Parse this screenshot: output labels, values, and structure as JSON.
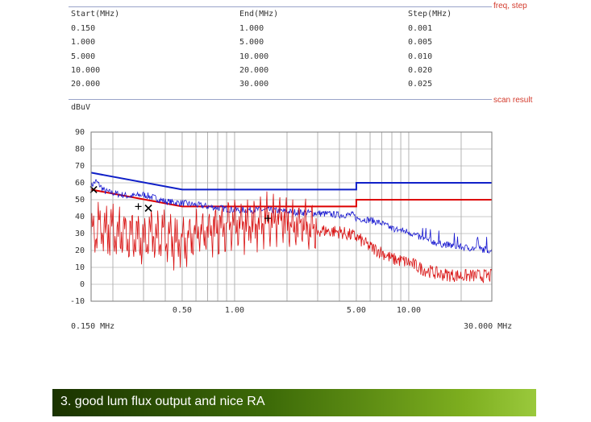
{
  "sections": {
    "freq_step_label": "freq, step",
    "scan_result_label": "scan result"
  },
  "table": {
    "headers": [
      "Start(MHz)",
      "End(MHz)",
      "Step(MHz)"
    ],
    "rows": [
      [
        "0.150",
        "1.000",
        "0.001"
      ],
      [
        "1.000",
        "5.000",
        "0.005"
      ],
      [
        "5.000",
        "10.000",
        "0.010"
      ],
      [
        "10.000",
        "20.000",
        "0.020"
      ],
      [
        "20.000",
        "30.000",
        "0.025"
      ]
    ]
  },
  "chart_data": {
    "type": "line",
    "title": "",
    "ylabel": "dBuV",
    "xlabel": "",
    "x_scale": "log",
    "xlim": [
      0.15,
      30
    ],
    "ylim": [
      -10,
      90
    ],
    "y_ticks": [
      -10,
      0,
      10,
      20,
      30,
      40,
      50,
      60,
      70,
      80,
      90
    ],
    "x_tick_labels": [
      {
        "value": 0.5,
        "label": "0.50"
      },
      {
        "value": 1.0,
        "label": "1.00"
      },
      {
        "value": 5.0,
        "label": "5.00"
      },
      {
        "value": 10.0,
        "label": "10.00"
      }
    ],
    "x_range_labels": {
      "start": "0.150 MHz",
      "end": "30.000 MHz"
    },
    "grid": true,
    "series": [
      {
        "kind": "limit",
        "color": "#1020c8",
        "x": [
          0.15,
          0.5,
          0.5,
          5.0,
          5.0,
          30.0
        ],
        "y": [
          66,
          56,
          56,
          56,
          60,
          60
        ]
      },
      {
        "kind": "limit",
        "color": "#dd0000",
        "x": [
          0.15,
          0.5,
          0.5,
          5.0,
          5.0,
          30.0
        ],
        "y": [
          56,
          46,
          46,
          46,
          50,
          50
        ]
      },
      {
        "kind": "trace",
        "color": "#1a1ad0",
        "x": [
          0.15,
          0.16,
          0.18,
          0.2,
          0.25,
          0.3,
          0.35,
          0.4,
          0.5,
          0.7,
          1.0,
          1.5,
          2.0,
          3.0,
          4.0,
          4.8,
          5.0,
          6.0,
          7.0,
          8.0,
          10.0,
          12.0,
          15.0,
          20.0,
          25.0,
          30.0
        ],
        "y": [
          58,
          61,
          55,
          54,
          52,
          53,
          51,
          49,
          48,
          46,
          44,
          44,
          43,
          42,
          41,
          41,
          39,
          38,
          36,
          33,
          31,
          27,
          24,
          22,
          21,
          20
        ]
      },
      {
        "kind": "trace",
        "color": "#d81010",
        "x": [
          0.15,
          0.17,
          0.2,
          0.25,
          0.3,
          0.35,
          0.4,
          0.5,
          0.6,
          0.8,
          1.0,
          1.3,
          1.6,
          2.0,
          3.0,
          4.0,
          5.0,
          6.0,
          7.0,
          8.0,
          10.0,
          12.0,
          15.0,
          20.0,
          25.0,
          30.0
        ],
        "y": [
          30,
          34,
          32,
          28,
          27,
          30,
          28,
          25,
          30,
          33,
          35,
          36,
          38,
          37,
          32,
          31,
          28,
          22,
          19,
          15,
          13,
          9,
          6,
          5,
          5,
          5
        ]
      }
    ],
    "markers": [
      {
        "x": 0.155,
        "y": 56,
        "symbol": "x"
      },
      {
        "x": 0.28,
        "y": 46,
        "symbol": "plus"
      },
      {
        "x": 0.32,
        "y": 45,
        "symbol": "x"
      },
      {
        "x": 1.55,
        "y": 39,
        "symbol": "plus"
      }
    ]
  },
  "banner": {
    "text": "3. good lum flux output and nice RA"
  }
}
